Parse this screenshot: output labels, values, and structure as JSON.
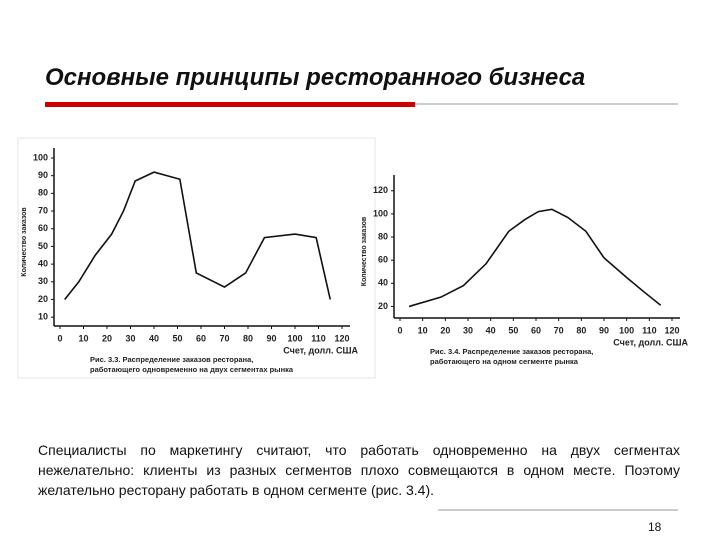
{
  "title": "Основные принципы ресторанного бизнеса",
  "body": "Специалисты по маркетингу считают, что работать одновременно на двух сегментах нежелательно: клиенты из разных сегментов плохо совмещаются в одном месте. Поэтому желательно ресторану работать в одном сегменте (рис. 3.4).",
  "page_number": "18",
  "chart_data": [
    {
      "type": "line",
      "xlabel": "Счет, долл. США",
      "ylabel": "Количество заказов",
      "caption": [
        "Рис. 3.3. Распределение заказов ресторана,",
        "работающего одновременно на двух сегментах рынка"
      ],
      "x": [
        2,
        8,
        15,
        22,
        27,
        32,
        40,
        51,
        58,
        70,
        79,
        87,
        100,
        109,
        115
      ],
      "values": [
        20,
        30,
        45,
        57,
        70,
        87,
        92,
        88,
        35,
        27,
        35,
        55,
        57,
        55,
        20
      ],
      "color": "#111111",
      "xlim": [
        0,
        120
      ],
      "xticks": [
        0,
        10,
        20,
        30,
        40,
        50,
        60,
        70,
        80,
        90,
        100,
        110,
        120
      ],
      "ylim": [
        5,
        100
      ],
      "yticks": [
        10,
        20,
        30,
        40,
        50,
        60,
        70,
        80,
        90,
        100
      ]
    },
    {
      "type": "line",
      "xlabel": "Счет, долл. США",
      "ylabel": "Количество заказов",
      "caption": [
        "Рис. 3.4. Распределение заказов ресторана,",
        "работающего на одном сегменте рынка"
      ],
      "x": [
        4,
        18,
        28,
        38,
        48,
        55,
        61,
        67,
        74,
        82,
        90,
        100,
        108,
        115
      ],
      "values": [
        20,
        28,
        38,
        57,
        85,
        95,
        102,
        104,
        97,
        85,
        62,
        45,
        32,
        21
      ],
      "color": "#111111",
      "xlim": [
        0,
        120
      ],
      "xticks": [
        0,
        10,
        20,
        30,
        40,
        50,
        60,
        70,
        80,
        90,
        100,
        110,
        120
      ],
      "ylim": [
        10,
        125
      ],
      "yticks": [
        20,
        40,
        60,
        80,
        100,
        120
      ]
    }
  ]
}
